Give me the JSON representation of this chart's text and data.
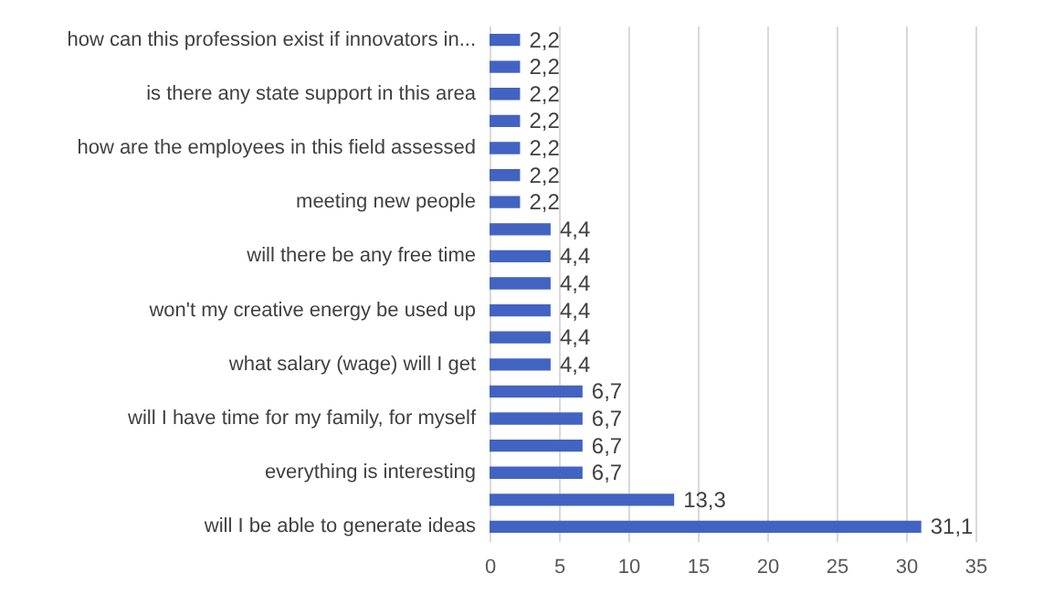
{
  "chart_data": {
    "type": "bar",
    "orientation": "horizontal",
    "categories": [
      "how can this profession exist if innovators in...",
      null,
      "is there any state support in this area",
      null,
      "how are the employees in this field assessed",
      null,
      "meeting new people",
      null,
      "will there be any free time",
      null,
      "won't my creative energy be used up",
      null,
      "what salary (wage) will I get",
      null,
      "will I have time for my family, for myself",
      null,
      "everything is interesting",
      null,
      "will I be able to generate ideas"
    ],
    "values": [
      2.2,
      2.2,
      2.2,
      2.2,
      2.2,
      2.2,
      2.2,
      4.4,
      4.4,
      4.4,
      4.4,
      4.4,
      4.4,
      6.7,
      6.7,
      6.7,
      6.7,
      13.3,
      31.1
    ],
    "value_labels": [
      "2,2",
      "2,2",
      "2,2",
      "2,2",
      "2,2",
      "2,2",
      "2,2",
      "4,4",
      "4,4",
      "4,4",
      "4,4",
      "4,4",
      "4,4",
      "6,7",
      "6,7",
      "6,7",
      "6,7",
      "13,3",
      "31,1"
    ],
    "color": "#4263c2",
    "xlim": [
      0,
      35
    ],
    "xticks": [
      0,
      5,
      10,
      15,
      20,
      25,
      30,
      35
    ],
    "grid": "x"
  }
}
